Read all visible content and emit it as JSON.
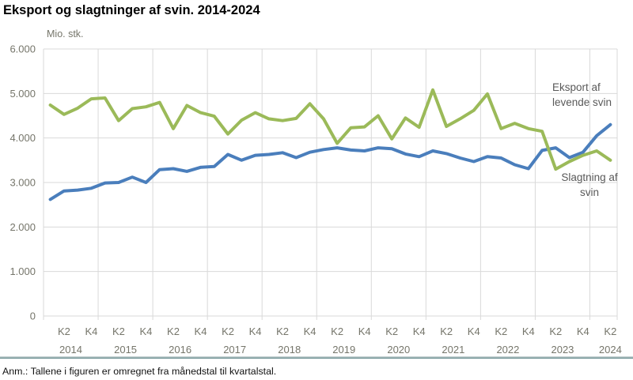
{
  "title": "Eksport og slagtninger af svin. 2014-2024",
  "note": "Anm.: Tallene i figuren er omregnet fra månedstal til kvartalstal.",
  "colors": {
    "background": "#ffffff",
    "grid": "#d9d9d9",
    "axis_text": "#75756a",
    "series_label_text": "#595959",
    "separator_top": "#d8dfdf",
    "separator_bottom": "#5f878a"
  },
  "chart_data": {
    "type": "line",
    "title": "Eksport og slagtninger af svin. 2014-2024",
    "unit_label": "Mio. stk.",
    "ylim": [
      0,
      6000
    ],
    "y_ticks": [
      "6.000",
      "5.000",
      "4.000",
      "3.000",
      "2.000",
      "1.000",
      "0"
    ],
    "grid": true,
    "legend_position": "inline labels at right of plot",
    "x": [
      "2014K1",
      "2014K2",
      "2014K3",
      "2014K4",
      "2015K1",
      "2015K2",
      "2015K3",
      "2015K4",
      "2016K1",
      "2016K2",
      "2016K3",
      "2016K4",
      "2017K1",
      "2017K2",
      "2017K3",
      "2017K4",
      "2018K1",
      "2018K2",
      "2018K3",
      "2018K4",
      "2019K1",
      "2019K2",
      "2019K3",
      "2019K4",
      "2020K1",
      "2020K2",
      "2020K3",
      "2020K4",
      "2021K1",
      "2021K2",
      "2021K3",
      "2021K4",
      "2022K1",
      "2022K2",
      "2022K3",
      "2022K4",
      "2023K1",
      "2023K2",
      "2023K3",
      "2023K4",
      "2024K1",
      "2024K2"
    ],
    "x_axis": {
      "years": [
        {
          "label": "2014",
          "ticks": [
            "K2",
            "K4"
          ]
        },
        {
          "label": "2015",
          "ticks": [
            "K2",
            "K4"
          ]
        },
        {
          "label": "2016",
          "ticks": [
            "K2",
            "K4"
          ]
        },
        {
          "label": "2017",
          "ticks": [
            "K2",
            "K4"
          ]
        },
        {
          "label": "2018",
          "ticks": [
            "K2",
            "K4"
          ]
        },
        {
          "label": "2019",
          "ticks": [
            "K2",
            "K4"
          ]
        },
        {
          "label": "2020",
          "ticks": [
            "K2",
            "K4"
          ]
        },
        {
          "label": "2021",
          "ticks": [
            "K2",
            "K4"
          ]
        },
        {
          "label": "2022",
          "ticks": [
            "K2",
            "K4"
          ]
        },
        {
          "label": "2023",
          "ticks": [
            "K2",
            "K4"
          ]
        },
        {
          "label": "2024",
          "ticks": [
            "K2"
          ]
        }
      ]
    },
    "series": [
      {
        "name": "Eksport af levende svin",
        "color": "#4a7ebc",
        "values": [
          2620,
          2810,
          2830,
          2870,
          2990,
          3000,
          3120,
          3000,
          3290,
          3310,
          3250,
          3340,
          3360,
          3630,
          3500,
          3610,
          3630,
          3670,
          3560,
          3680,
          3740,
          3780,
          3730,
          3710,
          3780,
          3760,
          3640,
          3580,
          3710,
          3650,
          3550,
          3470,
          3580,
          3550,
          3400,
          3310,
          3720,
          3780,
          3560,
          3680,
          4050,
          4300
        ]
      },
      {
        "name": "Slagtning af svin",
        "color": "#9bba59",
        "values": [
          4740,
          4530,
          4670,
          4880,
          4900,
          4390,
          4660,
          4700,
          4800,
          4210,
          4730,
          4570,
          4490,
          4090,
          4400,
          4570,
          4430,
          4390,
          4440,
          4770,
          4430,
          3880,
          4230,
          4250,
          4500,
          3980,
          4450,
          4240,
          5080,
          4260,
          4430,
          4620,
          4990,
          4210,
          4330,
          4210,
          4150,
          3300,
          3470,
          3610,
          3710,
          3500
        ]
      }
    ]
  }
}
